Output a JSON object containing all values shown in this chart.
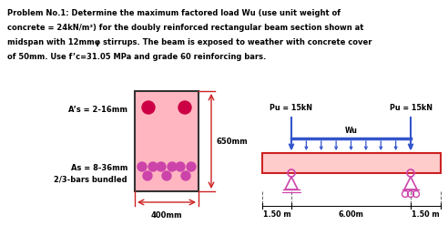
{
  "title_line1": "Problem No.1: Determine the maximum factored load Wu (use unit weight of",
  "title_line2": "concrete = 24kN/m³) for the doubly reinforced rectangular beam section shown at",
  "title_line3": "midspan with 12mmφ stirrups. The beam is exposed to weather with concrete cover",
  "title_line4": "of 50mm. Use f’c=31.05 MPa and grade 60 reinforcing bars.",
  "beam_fill": "#ffb6c1",
  "beam_border": "#333333",
  "rebar_top_color": "#cc0044",
  "rebar_bot_color": "#cc44aa",
  "label_As_prime": "A’s = 2-16mm",
  "label_As": "As = 8-36mm",
  "label_bundled": "2/3-bars bundled",
  "label_400mm": "400mm",
  "label_650mm": "650mm",
  "dim_color": "#cc2222",
  "beam_diag_fill": "#ffcccc",
  "beam_diag_border": "#cc2222",
  "load_color": "#3355cc",
  "support_color": "#cc44aa",
  "pu_label": "Pu = 15kN",
  "wu_label": "Wu",
  "dist1": "1.50 m",
  "dist2": "6.00m",
  "dist3": "1.50 m"
}
